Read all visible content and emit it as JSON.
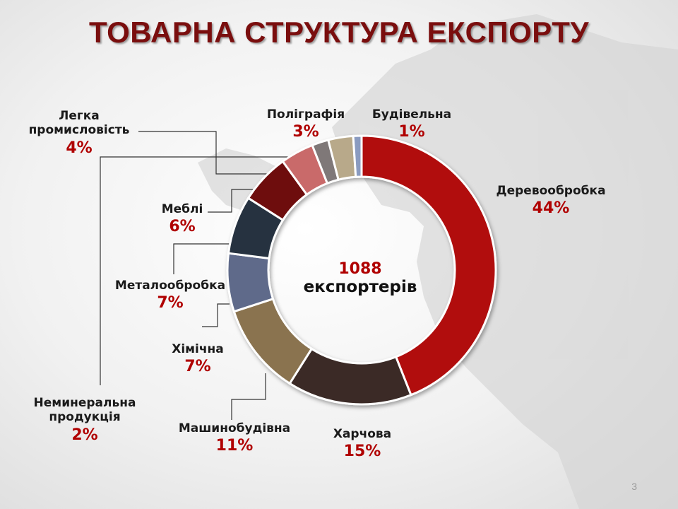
{
  "slide": {
    "title": "ТОВАРНА СТРУКТУРА ЕКСПОРТУ",
    "page_number": "3"
  },
  "center": {
    "value": "1088",
    "label": "експортерів"
  },
  "colors": {
    "title": "#7a0e0e",
    "percent": "#b00000"
  },
  "chart_data": {
    "type": "pie",
    "donut": true,
    "center_text": [
      "1088",
      "експортерів"
    ],
    "slices": [
      {
        "label": "Деревообробка",
        "value": 44,
        "value_label": "44%",
        "color": "#b10b0b"
      },
      {
        "label": "Харчова",
        "value": 15,
        "value_label": "15%",
        "color": "#3b2b26"
      },
      {
        "label": "Машинобудівна",
        "value": 11,
        "value_label": "11%",
        "color": "#8a7350"
      },
      {
        "label": "Хімічна",
        "value": 7,
        "value_label": "7%",
        "color": "#5e6b8a"
      },
      {
        "label": "Металообробка",
        "value": 7,
        "value_label": "7%",
        "color": "#26323f"
      },
      {
        "label": "Меблі",
        "value": 6,
        "value_label": "6%",
        "color": "#6e0a0a"
      },
      {
        "label": "Легка промисловість",
        "value": 4,
        "value_label": "4%",
        "color": "#c96b6b"
      },
      {
        "label": "Неминеральна продукція",
        "value": 2,
        "value_label": "2%",
        "color": "#7f7878"
      },
      {
        "label": "Поліграфія",
        "value": 3,
        "value_label": "3%",
        "color": "#b8a98a"
      },
      {
        "label": "Будівельна",
        "value": 1,
        "value_label": "1%",
        "color": "#8a9bc0"
      }
    ]
  }
}
